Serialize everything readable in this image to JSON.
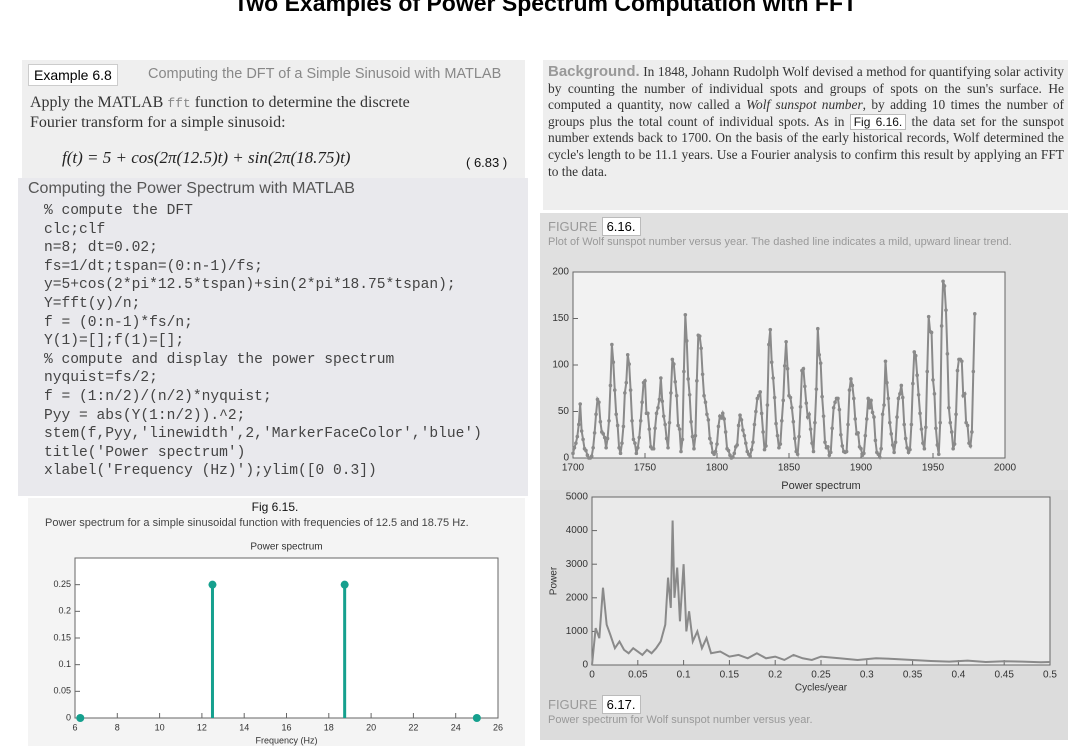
{
  "title": "Two Examples of Power Spectrum Computation with FFT",
  "example": {
    "label": "Example 6.8",
    "heading": "Computing the DFT of a Simple Sinusoid with MATLAB",
    "intro": [
      "Apply the MATLAB ",
      "fft",
      " function to determine the discrete Fourier transform for a simple sinusoid:"
    ],
    "equation": "f(t) = 5 + cos(2π(12.5)t) + sin(2π(18.75)t)",
    "equation_number": "( 6.83 )"
  },
  "code_section": {
    "heading": "Computing the Power Spectrum with MATLAB",
    "lines": [
      "% compute the DFT",
      "clc;clf",
      "n=8; dt=0.02;",
      "fs=1/dt;tspan=(0:n-1)/fs;",
      "y=5+cos(2*pi*12.5*tspan)+sin(2*pi*18.75*tspan);",
      "Y=fft(y)/n;",
      "f = (0:n-1)*fs/n;",
      "Y(1)=[];f(1)=[];",
      "% compute and display the power spectrum",
      "nyquist=fs/2;",
      "f = (1:n/2)/(n/2)*nyquist;",
      "Pyy = abs(Y(1:n/2)).^2;",
      "stem(f,Pyy,'linewidth',2,'MarkerFaceColor','blue')",
      "title('Power spectrum')",
      "xlabel('Frequency (Hz)');ylim([0 0.3])"
    ]
  },
  "figure_6_15": {
    "label": "Fig 6.15.",
    "caption": "Power spectrum for a simple sinusoidal function with frequencies of 12.5 and 18.75 Hz."
  },
  "background": {
    "lead": "Background.",
    "text": [
      "In 1848, Johann Rudolph Wolf devised a method for quantifying solar activity by counting the number of individual spots and groups of spots on the sun's surface. He computed a quantity, now called a ",
      "Wolf sunspot number",
      ", by adding 10 times the number of groups plus the total count of individual spots. As in ",
      "Fig 6.16.",
      " the data set for the sunspot number extends back to 1700. On the basis of the early historical records, Wolf determined the cycle's length to be 11.1 years. Use a Fourier analysis to confirm this result by applying an FFT to the data."
    ]
  },
  "figure_6_16": {
    "label": "FIGURE",
    "number": "6.16.",
    "caption": "Plot of Wolf sunspot number versus year. The dashed line indicates a mild, upward linear trend."
  },
  "figure_6_17": {
    "label": "FIGURE",
    "number": "6.17.",
    "caption": "Power spectrum for Wolf sunspot number versus year."
  },
  "chart_data": [
    {
      "type": "stem",
      "title": "Power spectrum",
      "xlabel": "Frequency (Hz)",
      "color": "#15a08e",
      "x": [
        6.25,
        12.5,
        18.75,
        25
      ],
      "values": [
        0,
        0.25,
        0.25,
        0
      ],
      "xlim": [
        6,
        26
      ],
      "xticks": [
        6,
        8,
        10,
        12,
        14,
        16,
        18,
        20,
        22,
        24,
        26
      ],
      "ylim": [
        0,
        0.3
      ],
      "yticks": [
        0,
        0.05,
        0.1,
        0.15,
        0.2,
        0.25
      ]
    },
    {
      "type": "line",
      "color": "#8a8a8a",
      "markers": true,
      "x": [
        1700,
        1701,
        1702,
        1703,
        1704,
        1705,
        1706,
        1707,
        1708,
        1709,
        1710,
        1711,
        1712,
        1713,
        1714,
        1715,
        1716,
        1717,
        1718,
        1719,
        1720,
        1721,
        1722,
        1723,
        1724,
        1725,
        1726,
        1727,
        1728,
        1729,
        1730,
        1731,
        1732,
        1733,
        1734,
        1735,
        1736,
        1737,
        1738,
        1739,
        1740,
        1741,
        1742,
        1743,
        1744,
        1745,
        1746,
        1747,
        1748,
        1749,
        1750,
        1751,
        1752,
        1753,
        1754,
        1755,
        1756,
        1757,
        1758,
        1759,
        1760,
        1761,
        1762,
        1763,
        1764,
        1765,
        1766,
        1767,
        1768,
        1769,
        1770,
        1771,
        1772,
        1773,
        1774,
        1775,
        1776,
        1777,
        1778,
        1779,
        1780,
        1781,
        1782,
        1783,
        1784,
        1785,
        1786,
        1787,
        1788,
        1789,
        1790,
        1791,
        1792,
        1793,
        1794,
        1795,
        1796,
        1797,
        1798,
        1799,
        1800,
        1801,
        1802,
        1803,
        1804,
        1805,
        1806,
        1807,
        1808,
        1809,
        1810,
        1811,
        1812,
        1813,
        1814,
        1815,
        1816,
        1817,
        1818,
        1819,
        1820,
        1821,
        1822,
        1823,
        1824,
        1825,
        1826,
        1827,
        1828,
        1829,
        1830,
        1831,
        1832,
        1833,
        1834,
        1835,
        1836,
        1837,
        1838,
        1839,
        1840,
        1841,
        1842,
        1843,
        1844,
        1845,
        1846,
        1847,
        1848,
        1849,
        1850,
        1851,
        1852,
        1853,
        1854,
        1855,
        1856,
        1857,
        1858,
        1859,
        1860,
        1861,
        1862,
        1863,
        1864,
        1865,
        1866,
        1867,
        1868,
        1869,
        1870,
        1871,
        1872,
        1873,
        1874,
        1875,
        1876,
        1877,
        1878,
        1879,
        1880,
        1881,
        1882,
        1883,
        1884,
        1885,
        1886,
        1887,
        1888,
        1889,
        1890,
        1891,
        1892,
        1893,
        1894,
        1895,
        1896,
        1897,
        1898,
        1899,
        1900,
        1901,
        1902,
        1903,
        1904,
        1905,
        1906,
        1907,
        1908,
        1909,
        1910,
        1911,
        1912,
        1913,
        1914,
        1915,
        1916,
        1917,
        1918,
        1919,
        1920,
        1921,
        1922,
        1923,
        1924,
        1925,
        1926,
        1927,
        1928,
        1929,
        1930,
        1931,
        1932,
        1933,
        1934,
        1935,
        1936,
        1937,
        1938,
        1939,
        1940,
        1941,
        1942,
        1943,
        1944,
        1945,
        1946,
        1947,
        1948,
        1949,
        1950,
        1951,
        1952,
        1953,
        1954,
        1955,
        1956,
        1957,
        1958,
        1959,
        1960,
        1961,
        1962,
        1963,
        1964,
        1965,
        1966,
        1967,
        1968,
        1969,
        1970,
        1971,
        1972,
        1973,
        1974,
        1975,
        1976,
        1977,
        1978,
        1979
      ],
      "values": [
        5,
        11,
        16,
        23,
        36,
        58,
        29,
        20,
        10,
        8,
        3,
        0,
        0,
        2,
        11,
        27,
        47,
        63,
        60,
        39,
        28,
        26,
        22,
        11,
        21,
        40,
        78,
        122,
        103,
        73,
        47,
        35,
        11,
        5,
        16,
        34,
        70,
        81,
        111,
        101,
        73,
        40,
        20,
        16,
        5,
        11,
        22,
        40,
        60,
        81,
        83,
        48,
        48,
        31,
        12,
        10,
        10,
        32,
        48,
        54,
        63,
        86,
        61,
        45,
        36,
        21,
        11,
        38,
        70,
        106,
        101,
        82,
        67,
        35,
        31,
        7,
        20,
        93,
        154,
        126,
        85,
        68,
        39,
        23,
        10,
        24,
        83,
        132,
        131,
        118,
        90,
        67,
        60,
        47,
        41,
        21,
        16,
        6,
        4,
        7,
        15,
        34,
        45,
        43,
        48,
        42,
        28,
        10,
        8,
        3,
        0,
        1,
        5,
        12,
        14,
        35,
        46,
        41,
        30,
        24,
        16,
        7,
        4,
        2,
        9,
        17,
        36,
        50,
        64,
        67,
        71,
        48,
        28,
        9,
        13,
        57,
        122,
        138,
        103,
        86,
        65,
        37,
        24,
        11,
        15,
        40,
        62,
        99,
        125,
        96,
        67,
        65,
        54,
        39,
        21,
        7,
        4,
        23,
        55,
        94,
        96,
        77,
        59,
        44,
        47,
        31,
        16,
        7,
        38,
        74,
        139,
        111,
        102,
        66,
        45,
        17,
        11,
        12,
        3,
        6,
        32,
        54,
        60,
        64,
        64,
        52,
        25,
        13,
        7,
        6,
        7,
        36,
        73,
        85,
        78,
        64,
        42,
        26,
        27,
        12,
        10,
        3,
        5,
        24,
        42,
        64,
        54,
        62,
        49,
        44,
        19,
        6,
        4,
        1,
        10,
        47,
        57,
        104,
        81,
        64,
        38,
        26,
        14,
        6,
        17,
        44,
        64,
        69,
        78,
        65,
        36,
        21,
        11,
        6,
        9,
        36,
        80,
        114,
        110,
        89,
        68,
        48,
        31,
        16,
        10,
        33,
        93,
        152,
        136,
        135,
        84,
        69,
        32,
        14,
        4,
        38,
        142,
        190,
        185,
        159,
        112,
        54,
        38,
        28,
        10,
        15,
        47,
        94,
        106,
        106,
        104,
        67,
        69,
        38,
        35,
        16,
        13,
        28,
        93,
        155
      ],
      "xlim": [
        1700,
        2000
      ],
      "xticks": [
        1700,
        1750,
        1800,
        1850,
        1900,
        1950,
        2000
      ],
      "ylim": [
        0,
        200
      ],
      "yticks": [
        0,
        50,
        100,
        150,
        200
      ]
    },
    {
      "type": "line",
      "title": "Power spectrum",
      "xlabel": "Cycles/year",
      "ylabel": "Power",
      "color": "#8a8a8a",
      "markers": false,
      "x": [
        0,
        0.004,
        0.008,
        0.012,
        0.016,
        0.02,
        0.025,
        0.03,
        0.035,
        0.04,
        0.045,
        0.05,
        0.055,
        0.06,
        0.065,
        0.07,
        0.075,
        0.08,
        0.083,
        0.086,
        0.088,
        0.09,
        0.093,
        0.096,
        0.1,
        0.103,
        0.106,
        0.11,
        0.115,
        0.12,
        0.125,
        0.13,
        0.14,
        0.15,
        0.16,
        0.17,
        0.18,
        0.19,
        0.2,
        0.21,
        0.22,
        0.23,
        0.24,
        0.25,
        0.27,
        0.29,
        0.31,
        0.33,
        0.35,
        0.37,
        0.39,
        0.41,
        0.43,
        0.45,
        0.47,
        0.49,
        0.5
      ],
      "values": [
        0,
        1100,
        800,
        2300,
        1200,
        900,
        500,
        700,
        450,
        350,
        500,
        400,
        300,
        450,
        350,
        500,
        700,
        1200,
        2600,
        1700,
        4300,
        2000,
        2900,
        1300,
        3000,
        1000,
        1600,
        700,
        1000,
        500,
        800,
        350,
        400,
        250,
        300,
        200,
        350,
        200,
        250,
        150,
        300,
        200,
        150,
        250,
        200,
        150,
        200,
        180,
        150,
        120,
        100,
        130,
        90,
        110,
        100,
        80,
        90
      ],
      "xlim": [
        0,
        0.5
      ],
      "xticks": [
        0,
        0.05,
        0.1,
        0.15,
        0.2,
        0.25,
        0.3,
        0.35,
        0.4,
        0.45,
        0.5
      ],
      "ylim": [
        0,
        5000
      ],
      "yticks": [
        0,
        1000,
        2000,
        3000,
        4000,
        5000
      ]
    }
  ]
}
